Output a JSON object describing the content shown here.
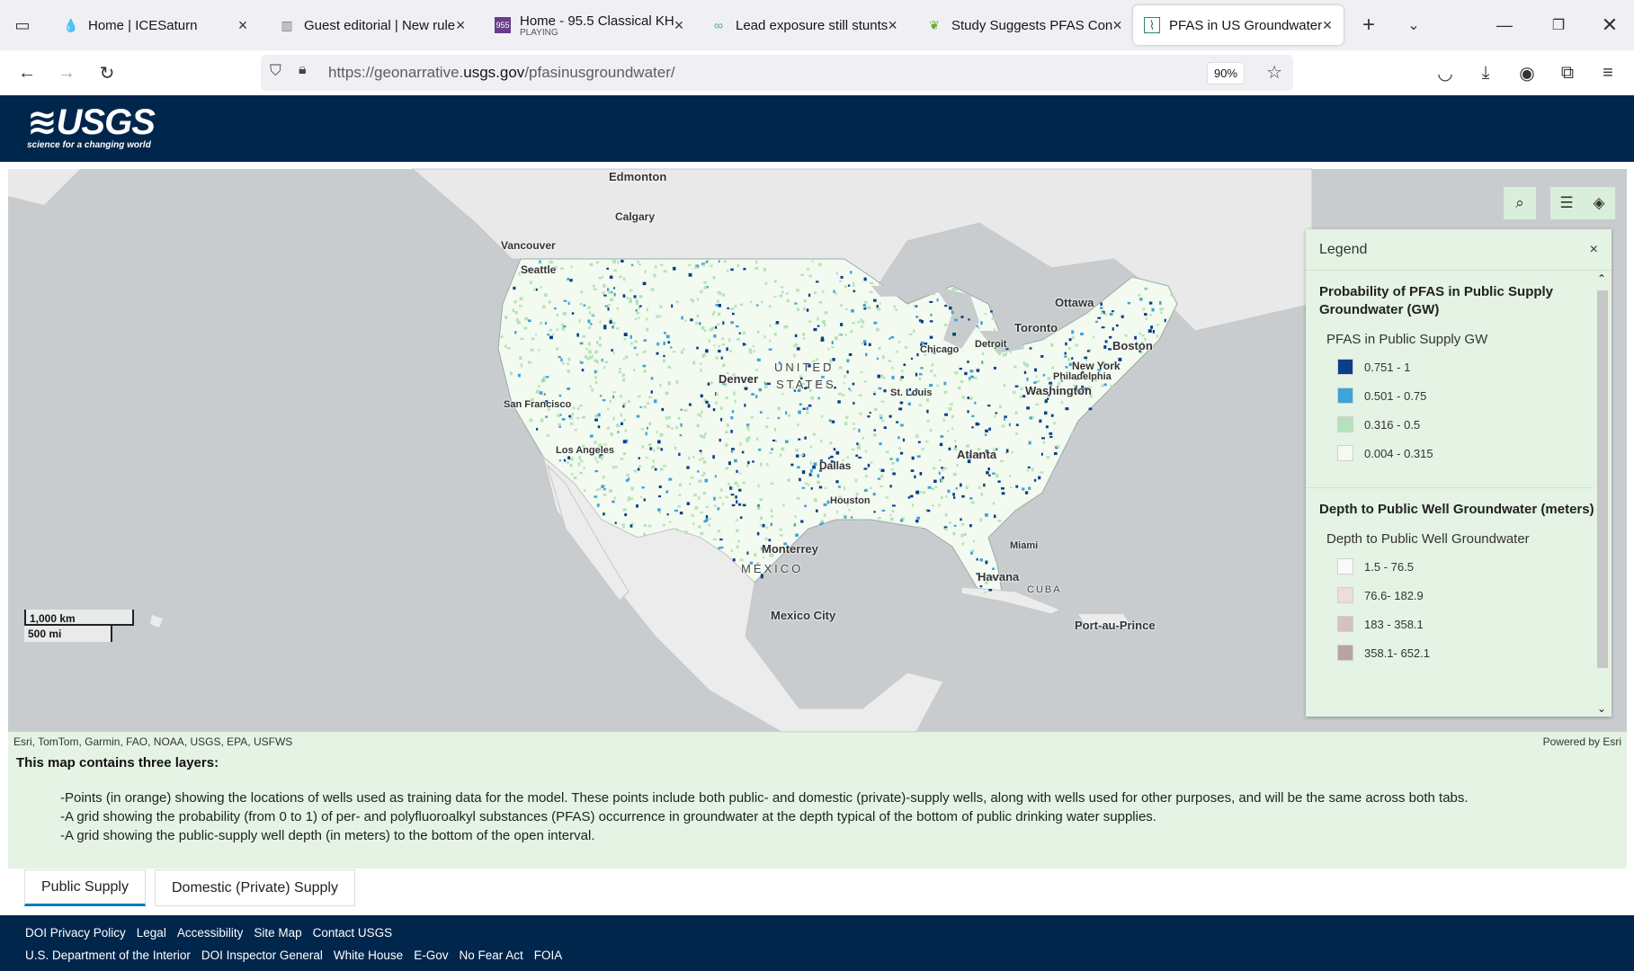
{
  "browser": {
    "tabs": [
      {
        "title": "Home | ICESaturn",
        "icon": "drop-icon"
      },
      {
        "title": "Guest editorial | New rule",
        "icon": "building-icon"
      },
      {
        "title": "Home - 95.5 Classical KH",
        "subtitle": "PLAYING",
        "icon": "radio-icon",
        "badge": "955"
      },
      {
        "title": "Lead exposure still stunts",
        "icon": "dots-icon"
      },
      {
        "title": "Study Suggests PFAS Con",
        "icon": "leaf-icon"
      },
      {
        "title": "PFAS in US Groundwater",
        "icon": "map-icon"
      }
    ],
    "url_prefix": "https://geonarrative.",
    "url_domain": "usgs.gov",
    "url_path": "/pfasinusgroundwater/",
    "zoom": "90%"
  },
  "site": {
    "logo_text": "≋USGS",
    "logo_tagline": "science for a changing world"
  },
  "map": {
    "labels": [
      {
        "text": "Edmonton"
      },
      {
        "text": "Calgary"
      },
      {
        "text": "Vancouver"
      },
      {
        "text": "Seattle"
      },
      {
        "text": "Ottawa"
      },
      {
        "text": "Toronto"
      },
      {
        "text": "Detroit"
      },
      {
        "text": "Chicago"
      },
      {
        "text": "Boston"
      },
      {
        "text": "New York"
      },
      {
        "text": "Philadelphia"
      },
      {
        "text": "Washington"
      },
      {
        "text": "UNITED"
      },
      {
        "text": "STATES"
      },
      {
        "text": "Denver"
      },
      {
        "text": "St. Louis"
      },
      {
        "text": "San Francisco"
      },
      {
        "text": "Los Angeles"
      },
      {
        "text": "Dallas"
      },
      {
        "text": "Atlanta"
      },
      {
        "text": "Houston"
      },
      {
        "text": "Miami"
      },
      {
        "text": "Monterrey"
      },
      {
        "text": "MÉXICO"
      },
      {
        "text": "Havana"
      },
      {
        "text": "CUBA"
      },
      {
        "text": "Mexico City"
      },
      {
        "text": "Port-au-Prince"
      }
    ],
    "scale_km": "1,000 km",
    "scale_mi": "500 mi",
    "attribution": "Esri, TomTom, Garmin, FAO, NOAA, USGS, EPA, USFWS",
    "powered_by": "Powered by Esri"
  },
  "legend": {
    "title": "Legend",
    "section1": {
      "title": "Probability of PFAS in Public Supply Groundwater (GW)",
      "subtitle": "PFAS in Public Supply GW",
      "items": [
        {
          "label": "0.751 - 1",
          "color": "#0b3d8a"
        },
        {
          "label": "0.501 - 0.75",
          "color": "#3ea3d6"
        },
        {
          "label": "0.316 - 0.5",
          "color": "#b5e2bb"
        },
        {
          "label": "0.004 - 0.315",
          "color": "#f4faf0"
        }
      ]
    },
    "section2": {
      "title": "Depth to Public Well Groundwater (meters)",
      "subtitle": "Depth to Public Well Groundwater",
      "items": [
        {
          "label": "1.5 - 76.5",
          "color": "#fbf8f8"
        },
        {
          "label": "76.6- 182.9",
          "color": "#ecdcdc"
        },
        {
          "label": "183 - 358.1",
          "color": "#d6c0c0"
        },
        {
          "label": "358.1- 652.1",
          "color": "#b8a2a2"
        }
      ]
    }
  },
  "description": {
    "heading": "This map contains three layers:",
    "lines": [
      "-Points (in orange) showing the locations of wells used as training data for the model. These points include both public- and domestic (private)-supply wells, along with wells used for other purposes, and will be the same across both tabs.",
      "-A grid showing the probability (from 0 to 1) of per- and polyfluoroalkyl substances (PFAS) occurrence in groundwater at the depth typical of the bottom of public drinking water supplies.",
      "-A grid showing the public-supply well depth (in meters) to the bottom of the open interval."
    ]
  },
  "page_tabs": [
    "Public Supply",
    "Domestic (Private) Supply"
  ],
  "footer": {
    "row1": [
      "DOI Privacy Policy",
      "Legal",
      "Accessibility",
      "Site Map",
      "Contact USGS"
    ],
    "row2": [
      "U.S. Department of the Interior",
      "DOI Inspector General",
      "White House",
      "E-Gov",
      "No Fear Act",
      "FOIA"
    ]
  }
}
